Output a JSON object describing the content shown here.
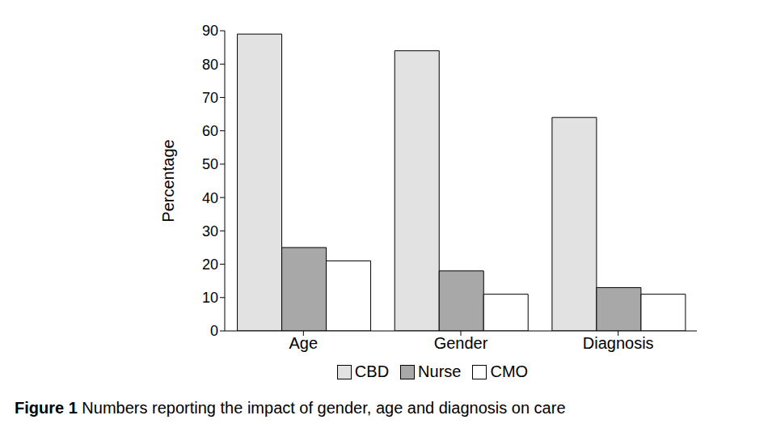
{
  "chart_data": {
    "type": "bar",
    "title": "Figure 1 Numbers reporting the impact of gender, age and diagnosis on care",
    "y_label": "Percentage",
    "categories": [
      "Age",
      "Gender",
      "Diagnosis"
    ],
    "series": [
      {
        "name": "CBD",
        "color": "#e2e2e2",
        "values": [
          89,
          84,
          64
        ]
      },
      {
        "name": "Nurse",
        "color": "#a8a8a8",
        "values": [
          25,
          18,
          13
        ]
      },
      {
        "name": "CMO",
        "color": "#ffffff",
        "values": [
          21,
          11,
          11
        ]
      }
    ],
    "ylim": [
      0,
      90
    ],
    "yticks": [
      0,
      10,
      20,
      30,
      40,
      50,
      60,
      70,
      80,
      90
    ],
    "grid": false,
    "legend": "bottom"
  }
}
